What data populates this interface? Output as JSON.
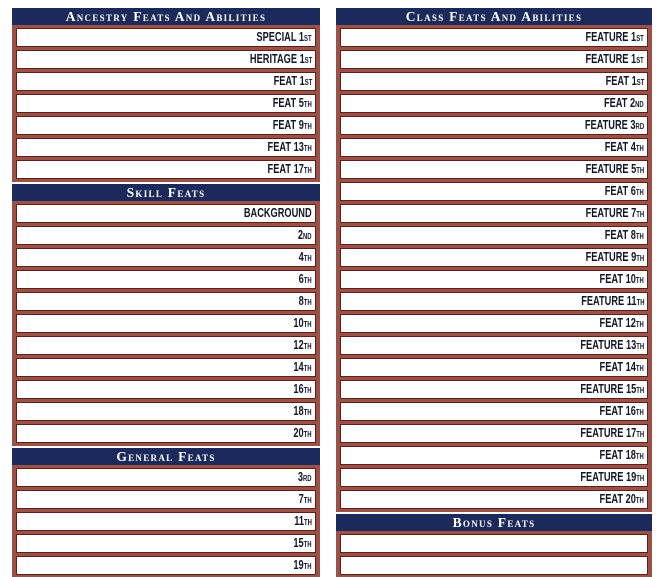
{
  "colors": {
    "navy": "#1b2a5b",
    "brick": "#9b5148",
    "dark-red": "#5e1f17",
    "ink": "#131528",
    "field-bg": "#ffffff"
  },
  "sections": {
    "ancestry": {
      "title": "Ancestry Feats And Abilities",
      "rows": [
        {
          "main": "SPECIAL 1",
          "ord": "ST"
        },
        {
          "main": "HERITAGE 1",
          "ord": "ST"
        },
        {
          "main": "FEAT 1",
          "ord": "ST"
        },
        {
          "main": "FEAT 5",
          "ord": "TH"
        },
        {
          "main": "FEAT 9",
          "ord": "TH"
        },
        {
          "main": "FEAT 13",
          "ord": "TH"
        },
        {
          "main": "FEAT 17",
          "ord": "TH"
        }
      ]
    },
    "skill": {
      "title": "Skill Feats",
      "rows": [
        {
          "main": "BACKGROUND",
          "ord": ""
        },
        {
          "main": "2",
          "ord": "ND"
        },
        {
          "main": "4",
          "ord": "TH"
        },
        {
          "main": "6",
          "ord": "TH"
        },
        {
          "main": "8",
          "ord": "TH"
        },
        {
          "main": "10",
          "ord": "TH"
        },
        {
          "main": "12",
          "ord": "TH"
        },
        {
          "main": "14",
          "ord": "TH"
        },
        {
          "main": "16",
          "ord": "TH"
        },
        {
          "main": "18",
          "ord": "TH"
        },
        {
          "main": "20",
          "ord": "TH"
        }
      ]
    },
    "general": {
      "title": "General Feats",
      "rows": [
        {
          "main": "3",
          "ord": "RD"
        },
        {
          "main": "7",
          "ord": "TH"
        },
        {
          "main": "11",
          "ord": "TH"
        },
        {
          "main": "15",
          "ord": "TH"
        },
        {
          "main": "19",
          "ord": "TH"
        }
      ]
    },
    "class": {
      "title": "Class Feats And Abilities",
      "rows": [
        {
          "main": "FEATURE 1",
          "ord": "ST"
        },
        {
          "main": "FEATURE 1",
          "ord": "ST"
        },
        {
          "main": "FEAT 1",
          "ord": "ST"
        },
        {
          "main": "FEAT 2",
          "ord": "ND"
        },
        {
          "main": "FEATURE 3",
          "ord": "RD"
        },
        {
          "main": "FEAT 4",
          "ord": "TH"
        },
        {
          "main": "FEATURE 5",
          "ord": "TH"
        },
        {
          "main": "FEAT 6",
          "ord": "TH"
        },
        {
          "main": "FEATURE 7",
          "ord": "TH"
        },
        {
          "main": "FEAT 8",
          "ord": "TH"
        },
        {
          "main": "FEATURE 9",
          "ord": "TH"
        },
        {
          "main": "FEAT 10",
          "ord": "TH"
        },
        {
          "main": "FEATURE 11",
          "ord": "TH"
        },
        {
          "main": "FEAT 12",
          "ord": "TH"
        },
        {
          "main": "FEATURE 13",
          "ord": "TH"
        },
        {
          "main": "FEAT 14",
          "ord": "TH"
        },
        {
          "main": "FEATURE 15",
          "ord": "TH"
        },
        {
          "main": "FEAT 16",
          "ord": "TH"
        },
        {
          "main": "FEATURE 17",
          "ord": "TH"
        },
        {
          "main": "FEAT 18",
          "ord": "TH"
        },
        {
          "main": "FEATURE 19",
          "ord": "TH"
        },
        {
          "main": "FEAT 20",
          "ord": "TH"
        }
      ]
    },
    "bonus": {
      "title": "Bonus Feats",
      "rows": [
        {
          "main": "",
          "ord": ""
        },
        {
          "main": "",
          "ord": ""
        }
      ]
    }
  }
}
